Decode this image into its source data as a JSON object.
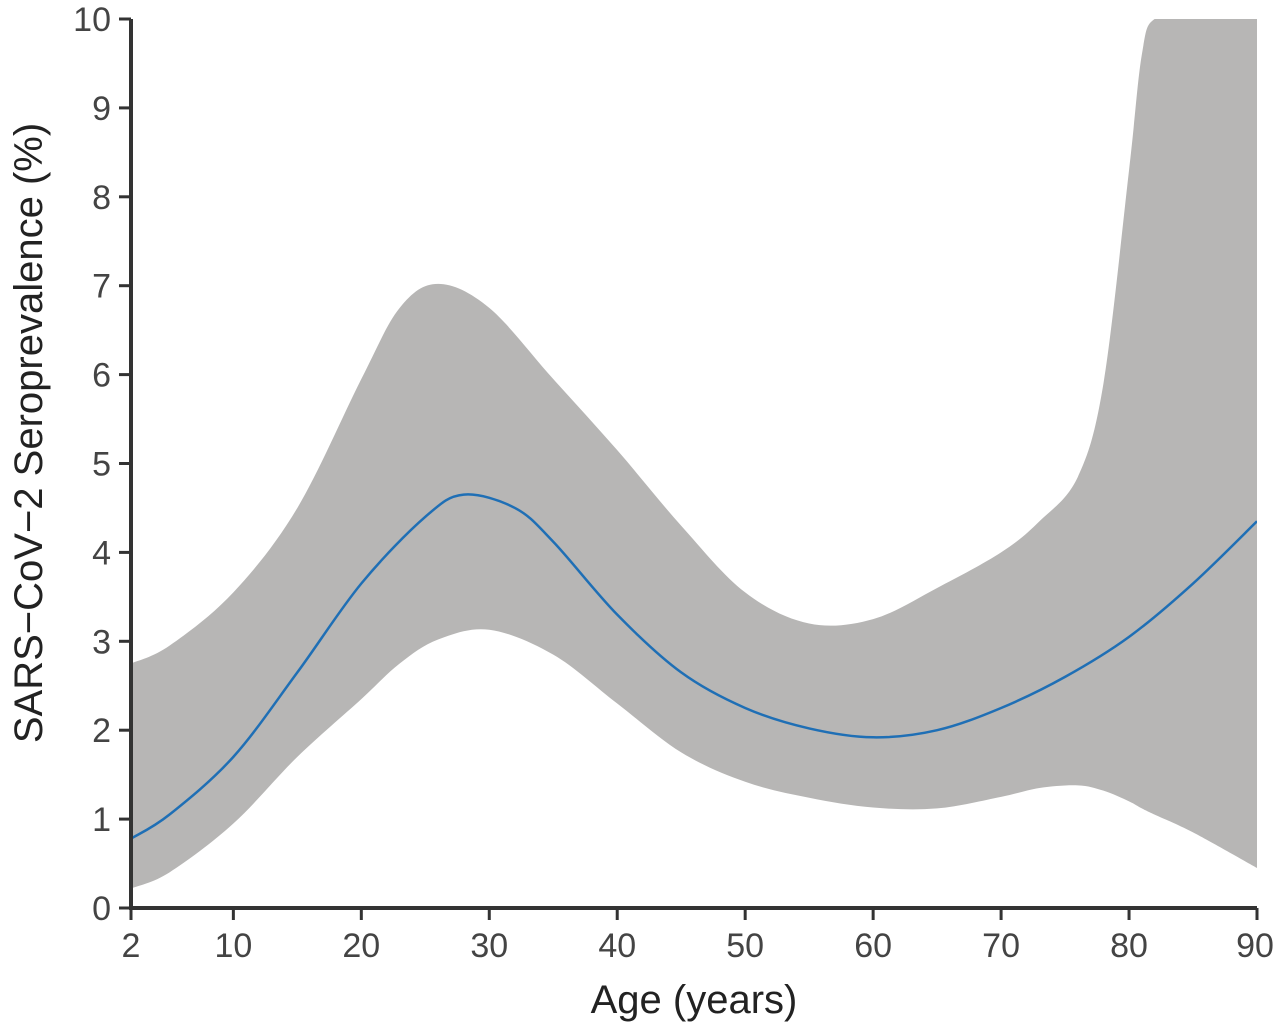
{
  "chart_data": {
    "type": "line",
    "title": "",
    "xlabel": "Age (years)",
    "ylabel": "SARS−CoV−2 Seroprevalence (%)",
    "xlim": [
      2,
      90
    ],
    "ylim": [
      0,
      10
    ],
    "xticks": [
      2,
      10,
      20,
      30,
      40,
      50,
      60,
      70,
      80,
      90
    ],
    "yticks": [
      0,
      1,
      2,
      3,
      4,
      5,
      6,
      7,
      8,
      9,
      10
    ],
    "grid": false,
    "legend": "none",
    "colors": {
      "line": "#1f6fb5",
      "band": "#b7b6b5",
      "axis": "#333333"
    },
    "series": [
      {
        "type": "line",
        "x": [
          2,
          5,
          10,
          15,
          20,
          25,
          28,
          32,
          35,
          40,
          45,
          50,
          55,
          60,
          65,
          70,
          75,
          80,
          85,
          90
        ],
        "y": [
          0.78,
          1.05,
          1.7,
          2.65,
          3.65,
          4.4,
          4.65,
          4.5,
          4.12,
          3.3,
          2.65,
          2.25,
          2.02,
          1.92,
          2.0,
          2.25,
          2.6,
          3.05,
          3.65,
          4.35
        ]
      },
      {
        "type": "band",
        "x": [
          2,
          5,
          10,
          15,
          20,
          23,
          26,
          30,
          35,
          40,
          45,
          50,
          55,
          60,
          65,
          70,
          73,
          76,
          78,
          80,
          81,
          82,
          85,
          90
        ],
        "lower": [
          0.22,
          0.4,
          0.95,
          1.7,
          2.35,
          2.75,
          3.02,
          3.13,
          2.85,
          2.3,
          1.75,
          1.42,
          1.24,
          1.13,
          1.12,
          1.25,
          1.35,
          1.38,
          1.32,
          1.2,
          1.12,
          1.05,
          0.85,
          0.45
        ],
        "upper": [
          2.75,
          2.95,
          3.55,
          4.5,
          5.95,
          6.75,
          7.02,
          6.75,
          5.95,
          5.15,
          4.3,
          3.55,
          3.2,
          3.25,
          3.6,
          4.0,
          4.35,
          4.85,
          5.9,
          8.3,
          9.6,
          10.0,
          10.0,
          10.0
        ]
      }
    ]
  }
}
